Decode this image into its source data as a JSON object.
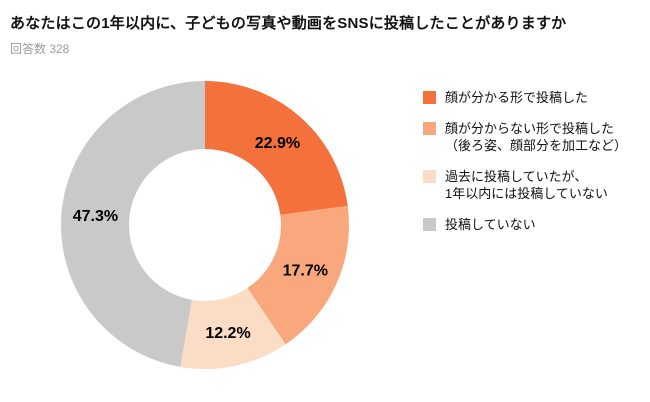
{
  "header": {
    "title": "あなたはこの1年以内に、子どもの写真や動画をSNSに投稿したことがありますか",
    "subtitle": "回答数 328"
  },
  "chart_data": {
    "type": "pie",
    "subtype": "donut",
    "title": "あなたはこの1年以内に、子どもの写真や動画をSNSに投稿したことがありますか",
    "response_count_label": "回答数 328",
    "response_count": 328,
    "start_angle_deg": -90,
    "direction": "clockwise",
    "legend_position": "right",
    "segments": [
      {
        "label": "顔が分かる形で投稿した",
        "value": 22.9,
        "display": "22.9%",
        "color": "#F5713B"
      },
      {
        "label": "顔が分からない形で投稿した\n（後ろ姿、顔部分を加工など）",
        "value": 17.7,
        "display": "17.7%",
        "color": "#F9A87D"
      },
      {
        "label": "過去に投稿していたが、\n1年以内には投稿していない",
        "value": 12.2,
        "display": "12.2%",
        "color": "#FBDCC5"
      },
      {
        "label": "投稿していない",
        "value": 47.3,
        "display": "47.3%",
        "color": "#C9C9C9"
      }
    ]
  }
}
